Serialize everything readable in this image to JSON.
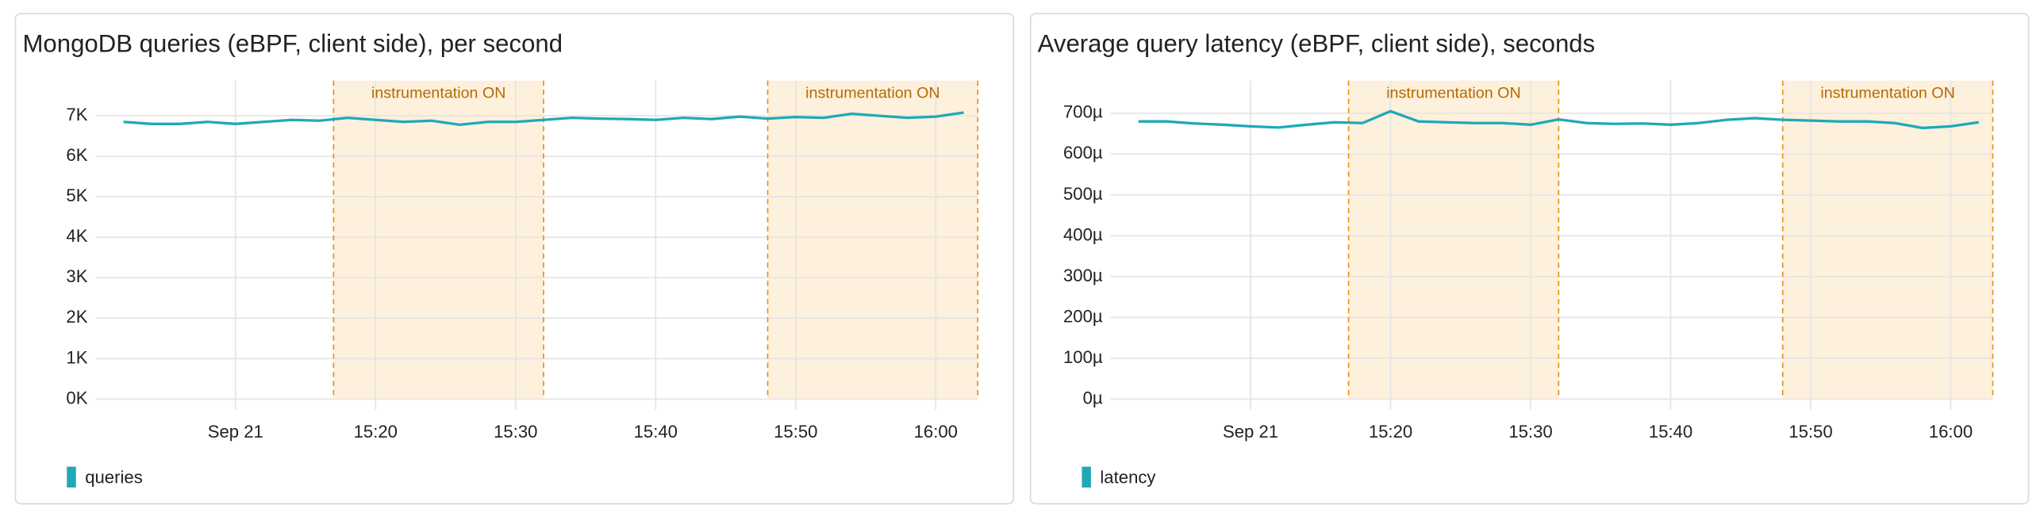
{
  "chart_data": [
    {
      "type": "line",
      "title": "MongoDB queries (eBPF, client side), per second",
      "x": [
        "15:02",
        "15:04",
        "15:06",
        "15:08",
        "15:10",
        "15:12",
        "15:14",
        "15:16",
        "15:18",
        "15:20",
        "15:22",
        "15:24",
        "15:26",
        "15:28",
        "15:30",
        "15:32",
        "15:34",
        "15:36",
        "15:38",
        "15:40",
        "15:42",
        "15:44",
        "15:46",
        "15:48",
        "15:50",
        "15:52",
        "15:54",
        "15:56",
        "15:58",
        "16:00",
        "16:02"
      ],
      "series": [
        {
          "name": "queries",
          "color": "#1fa9b8",
          "values": [
            6850,
            6800,
            6800,
            6850,
            6800,
            6850,
            6900,
            6880,
            6950,
            6900,
            6850,
            6880,
            6780,
            6850,
            6850,
            6900,
            6950,
            6930,
            6920,
            6900,
            6950,
            6920,
            6980,
            6930,
            6970,
            6950,
            7050,
            7000,
            6950,
            6980,
            7080
          ]
        }
      ],
      "xlim": [
        "15:00",
        "16:03"
      ],
      "xticks": [
        {
          "value": "15:10",
          "label": "Sep 21"
        },
        "15:20",
        "15:30",
        "15:40",
        "15:50",
        "16:00"
      ],
      "ylim": [
        0,
        7870
      ],
      "yticks": [
        {
          "value": 0,
          "label": "0K"
        },
        {
          "value": 1000,
          "label": "1K"
        },
        {
          "value": 2000,
          "label": "2K"
        },
        {
          "value": 3000,
          "label": "3K"
        },
        {
          "value": 4000,
          "label": "4K"
        },
        {
          "value": 5000,
          "label": "5K"
        },
        {
          "value": 6000,
          "label": "6K"
        },
        {
          "value": 7000,
          "label": "7K"
        }
      ],
      "grid": true,
      "regions": [
        {
          "from": "15:17",
          "to": "15:32",
          "label": "instrumentation ON"
        },
        {
          "from": "15:48",
          "to": "16:03",
          "label": "instrumentation ON"
        }
      ]
    },
    {
      "type": "line",
      "title": "Average query latency (eBPF, client side), seconds",
      "x": [
        "15:02",
        "15:04",
        "15:06",
        "15:08",
        "15:10",
        "15:12",
        "15:14",
        "15:16",
        "15:18",
        "15:20",
        "15:22",
        "15:24",
        "15:26",
        "15:28",
        "15:30",
        "15:32",
        "15:34",
        "15:36",
        "15:38",
        "15:40",
        "15:42",
        "15:44",
        "15:46",
        "15:48",
        "15:50",
        "15:52",
        "15:54",
        "15:56",
        "15:58",
        "16:00",
        "16:02"
      ],
      "series": [
        {
          "name": "latency",
          "color": "#1fa9b8",
          "values": [
            0.00068,
            0.00068,
            0.000675,
            0.000672,
            0.000668,
            0.000665,
            0.000672,
            0.000678,
            0.000676,
            0.000705,
            0.00068,
            0.000678,
            0.000676,
            0.000676,
            0.000672,
            0.000685,
            0.000676,
            0.000674,
            0.000675,
            0.000672,
            0.000676,
            0.000684,
            0.000688,
            0.000684,
            0.000682,
            0.00068,
            0.00068,
            0.000676,
            0.000664,
            0.000668,
            0.000678
          ]
        }
      ],
      "xlim": [
        "15:00",
        "16:03"
      ],
      "xticks": [
        {
          "value": "15:10",
          "label": "Sep 21"
        },
        "15:20",
        "15:30",
        "15:40",
        "15:50",
        "16:00"
      ],
      "ylim": [
        0,
        0.00078
      ],
      "yticks": [
        {
          "value": 0,
          "label": "0µ"
        },
        {
          "value": 0.0001,
          "label": "100µ"
        },
        {
          "value": 0.0002,
          "label": "200µ"
        },
        {
          "value": 0.0003,
          "label": "300µ"
        },
        {
          "value": 0.0004,
          "label": "400µ"
        },
        {
          "value": 0.0005,
          "label": "500µ"
        },
        {
          "value": 0.0006,
          "label": "600µ"
        },
        {
          "value": 0.0007,
          "label": "700µ"
        }
      ],
      "grid": true,
      "regions": [
        {
          "from": "15:17",
          "to": "15:32",
          "label": "instrumentation ON"
        },
        {
          "from": "15:48",
          "to": "16:03",
          "label": "instrumentation ON"
        }
      ]
    }
  ]
}
